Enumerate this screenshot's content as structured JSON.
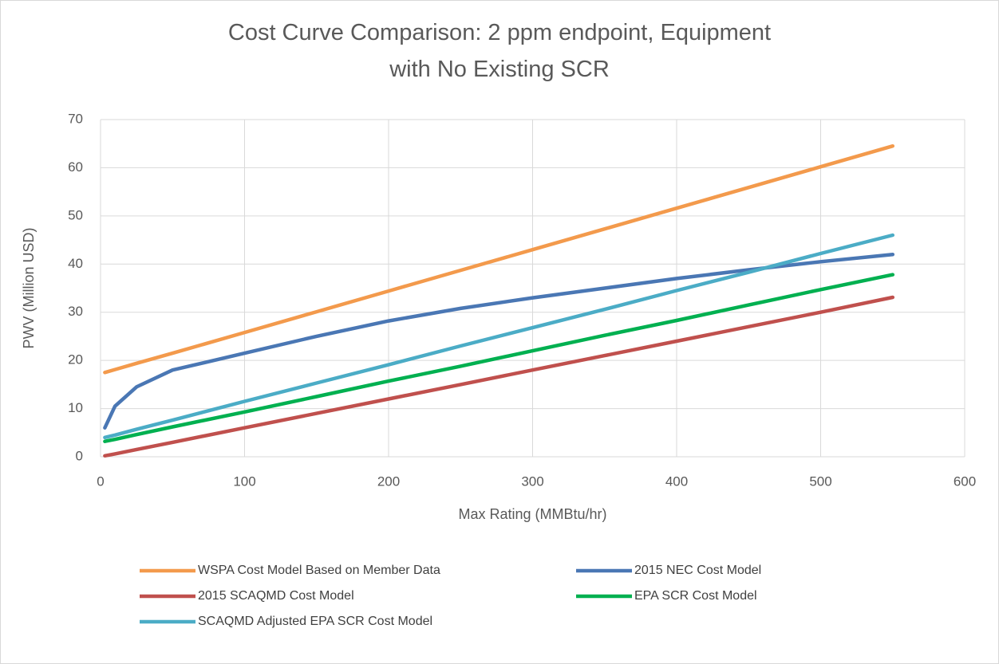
{
  "chart_data": {
    "type": "line",
    "title": "Cost Curve Comparison: 2 ppm endpoint, Equipment with No Existing SCR",
    "x_label": "Max Rating (MMBtu/hr)",
    "y_label": "PWV (Million USD)",
    "x": [
      3,
      10,
      25,
      50,
      100,
      150,
      200,
      250,
      300,
      350,
      400,
      450,
      500,
      550
    ],
    "series": [
      {
        "name": "WSPA Cost Model Based on Member Data",
        "color": "#f39a4c",
        "values": [
          17.5,
          18.1,
          19.4,
          21.5,
          25.8,
          30.1,
          34.4,
          38.7,
          43.0,
          47.3,
          51.6,
          55.9,
          60.2,
          64.5
        ]
      },
      {
        "name": "2015 NEC Cost Model",
        "color": "#4a77b4",
        "values": [
          6,
          10.5,
          14.5,
          18,
          21.5,
          25,
          28.2,
          30.8,
          33,
          35,
          37,
          38.8,
          40.5,
          42
        ]
      },
      {
        "name": "2015 SCAQMD Cost Model",
        "color": "#c0504d",
        "values": [
          0.2,
          0.6,
          1.5,
          3,
          6,
          9,
          12,
          15,
          18,
          21,
          24,
          27,
          30,
          33.1
        ]
      },
      {
        "name": "EPA SCR Cost Model",
        "color": "#00b050",
        "values": [
          3.2,
          3.6,
          4.6,
          6.2,
          9.3,
          12.5,
          15.7,
          18.8,
          22,
          25.2,
          28.3,
          31.5,
          34.7,
          37.8
        ]
      },
      {
        "name": "SCAQMD Adjusted EPA SCR Cost Model",
        "color": "#4bacc6",
        "values": [
          4,
          4.5,
          5.7,
          7.6,
          11.5,
          15.3,
          19.1,
          23,
          26.8,
          30.6,
          34.5,
          38.3,
          42.2,
          46
        ]
      }
    ],
    "xlim": [
      0,
      600
    ],
    "xticks": [
      0,
      100,
      200,
      300,
      400,
      500,
      600
    ],
    "ylim": [
      0,
      70
    ],
    "yticks": [
      0,
      10,
      20,
      30,
      40,
      50,
      60,
      70
    ],
    "grid": true,
    "legend": "bottom"
  }
}
